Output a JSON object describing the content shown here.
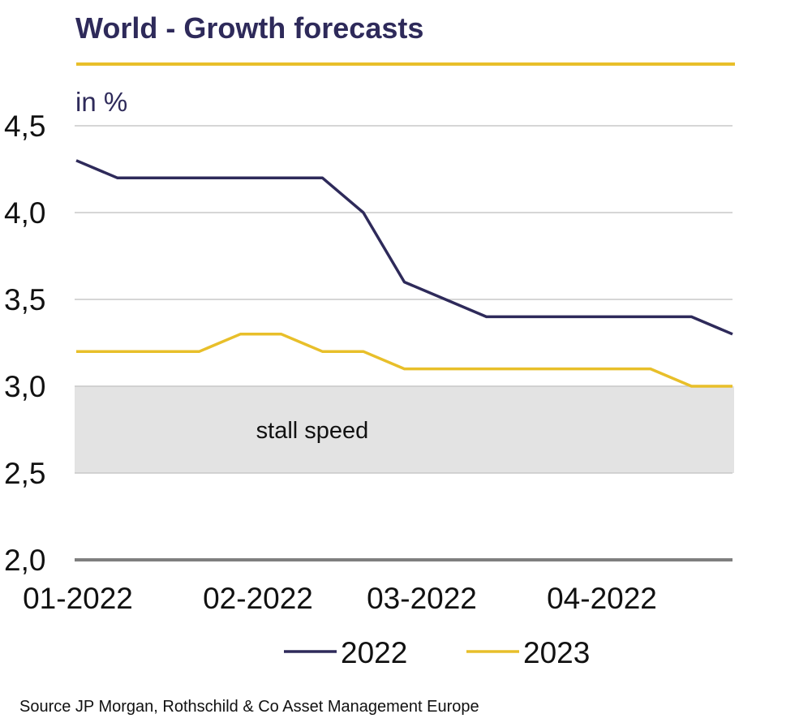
{
  "chart_data": {
    "type": "line",
    "title": "World - Growth forecasts",
    "unit_label": "in %",
    "x": [
      "01-2022",
      "01-2022",
      "02-2022",
      "02-2022",
      "02-2022",
      "02-2022",
      "02-2022",
      "03-2022",
      "03-2022",
      "03-2022",
      "03-2022",
      "03-2022",
      "03-2022",
      "04-2022",
      "04-2022",
      "04-2022",
      "04-2022"
    ],
    "x_tick_labels": [
      "01-2022",
      "02-2022",
      "03-2022",
      "04-2022"
    ],
    "y_ticks": [
      "2,0",
      "2,5",
      "3,0",
      "3,5",
      "4,0",
      "4,5"
    ],
    "ylim": [
      2.0,
      4.8
    ],
    "series": [
      {
        "name": "2022",
        "color": "#2e2a5a",
        "values": [
          4.3,
          4.2,
          4.2,
          4.2,
          4.2,
          4.2,
          4.2,
          4.0,
          3.6,
          3.5,
          3.4,
          3.4,
          3.4,
          3.4,
          3.4,
          3.4,
          3.3
        ]
      },
      {
        "name": "2023",
        "color": "#e8bf2a",
        "values": [
          3.2,
          3.2,
          3.2,
          3.2,
          3.3,
          3.3,
          3.2,
          3.2,
          3.1,
          3.1,
          3.1,
          3.1,
          3.1,
          3.1,
          3.1,
          3.0,
          3.0
        ]
      }
    ],
    "band": {
      "label": "stall speed",
      "from": 2.5,
      "to": 3.0
    },
    "legend_position": "bottom",
    "grid": true
  },
  "source": "Source JP Morgan, Rothschild & Co Asset Management Europe"
}
